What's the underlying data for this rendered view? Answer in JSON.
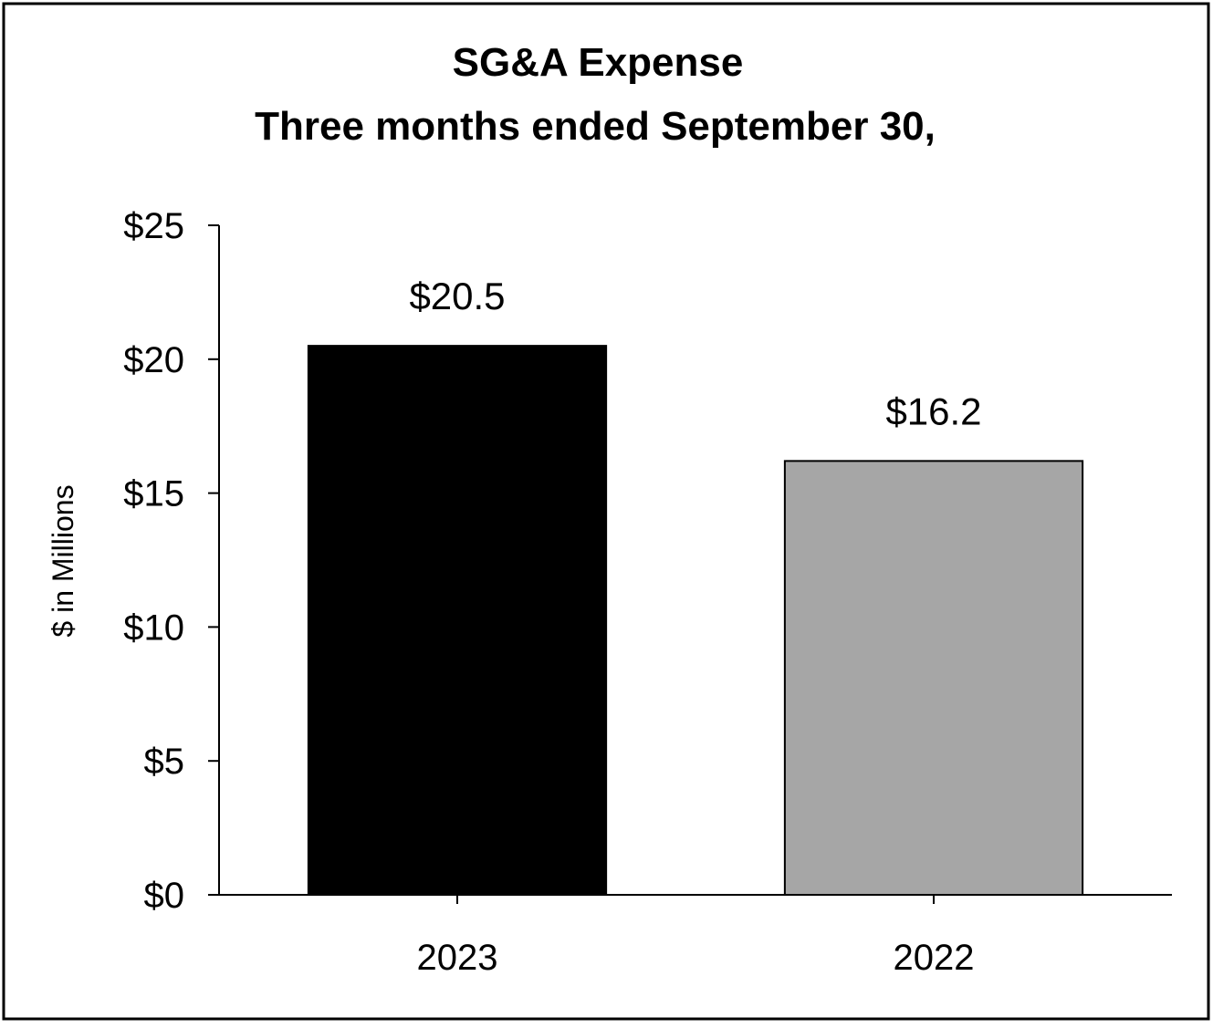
{
  "chart_data": {
    "type": "bar",
    "title": "SG&A Expense",
    "subtitle": "Three months ended September 30,",
    "xlabel": "",
    "ylabel": "$ in Millions",
    "categories": [
      "2023",
      "2022"
    ],
    "values": [
      20.5,
      16.2
    ],
    "data_labels": [
      "$20.5",
      "$16.2"
    ],
    "bar_colors": [
      "#000000",
      "#a6a6a6"
    ],
    "ylim": [
      0,
      25
    ],
    "yticks": [
      0,
      5,
      10,
      15,
      20,
      25
    ],
    "ytick_labels": [
      "$0",
      "$5",
      "$10",
      "$15",
      "$20",
      "$25"
    ],
    "grid": false,
    "legend": "none"
  }
}
